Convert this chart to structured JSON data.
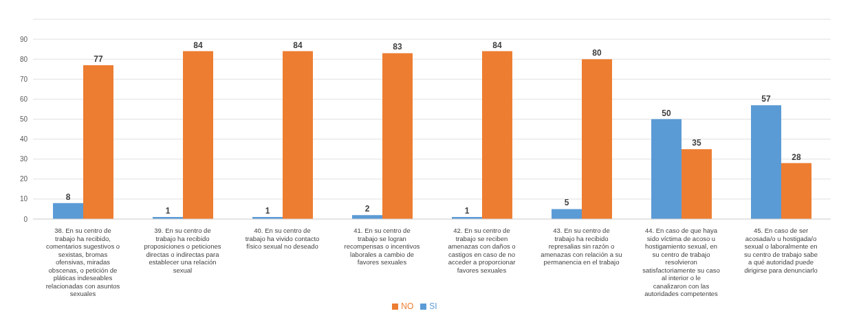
{
  "chart_data": {
    "type": "bar",
    "categories": [
      "38. En su centro de trabajo ha recibido, comentarios sugestivos o sexistas, bromas ofensivas, miradas obscenas, o petición de pláticas indeseables relacionadas con asuntos sexuales",
      "39. En su centro de trabajo ha recibido proposiciones o peticiones directas o indirectas para establecer una relación sexual",
      "40. En su centro de trabajo ha vivido contacto físico sexual no deseado",
      "41. En su centro de trabajo se logran recompensas o incentivos laborales a cambio de favores sexuales",
      "42. En su centro de trabajo se reciben amenazas con daños o castigos en caso de no acceder a proporcionar favores sexuales",
      "43. En su centro de trabajo ha recibido represalias sin razón o amenazas con relación a su permanencia en el trabajo",
      "44. En caso de que haya sido víctima de acoso u hostigamiento sexual, en su centro de trabajo resolvieron satisfactoriamente su caso al interior o le canalizaron con las autoridades competentes",
      "45. En caso de ser acosada/o u hostigada/o sexual o laboralmente en su centro de trabajo sabe a qué autoridad puede dirigirse para denunciarlo"
    ],
    "series": [
      {
        "name": "SI",
        "color": "#5b9bd5",
        "values": [
          8,
          1,
          1,
          2,
          1,
          5,
          50,
          57
        ]
      },
      {
        "name": "NO",
        "color": "#ed7d31",
        "values": [
          77,
          84,
          84,
          83,
          84,
          80,
          35,
          28
        ]
      }
    ],
    "ylim": [
      0,
      100
    ],
    "yticks": [
      0,
      10,
      20,
      30,
      40,
      50,
      60,
      70,
      80,
      90,
      {
        "value": 100,
        "label": null
      }
    ],
    "grid": "y",
    "legend": "bottom",
    "data_labels": true
  }
}
